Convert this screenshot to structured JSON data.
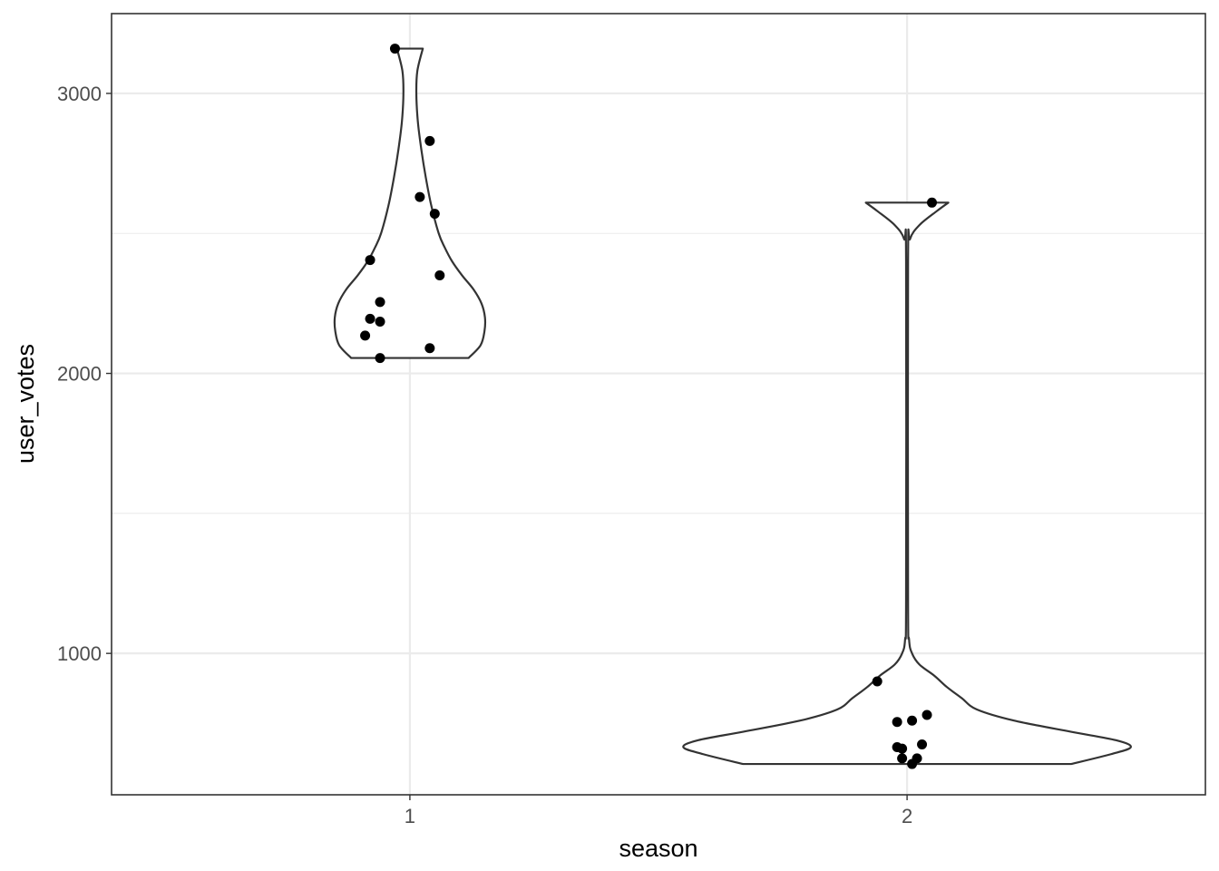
{
  "chart_data": {
    "type": "violin",
    "xlabel": "season",
    "ylabel": "user_votes",
    "categories": [
      "1",
      "2"
    ],
    "yticks": [
      1000,
      2000,
      3000
    ],
    "ylim": [
      495,
      3285
    ],
    "grid": true,
    "legend": "none",
    "colors": {
      "violin_outline": "#333333",
      "point": "#000000",
      "grid": "#ebebeb",
      "panel_border": "#333333"
    },
    "series": [
      {
        "category": "1",
        "points": [
          {
            "x": 0.97,
            "y": 3160
          },
          {
            "x": 1.04,
            "y": 2830
          },
          {
            "x": 1.05,
            "y": 2570
          },
          {
            "x": 1.02,
            "y": 2630
          },
          {
            "x": 1.06,
            "y": 2350
          },
          {
            "x": 0.92,
            "y": 2405
          },
          {
            "x": 0.94,
            "y": 2255
          },
          {
            "x": 0.92,
            "y": 2195
          },
          {
            "x": 0.94,
            "y": 2185
          },
          {
            "x": 0.91,
            "y": 2135
          },
          {
            "x": 1.04,
            "y": 2090
          },
          {
            "x": 0.94,
            "y": 2055
          }
        ],
        "violin_min": 2055,
        "violin_max": 3160,
        "density_profile": [
          {
            "y": 2055,
            "w": 0.118
          },
          {
            "y": 2100,
            "w": 0.142
          },
          {
            "y": 2150,
            "w": 0.15
          },
          {
            "y": 2200,
            "w": 0.151
          },
          {
            "y": 2250,
            "w": 0.144
          },
          {
            "y": 2300,
            "w": 0.128
          },
          {
            "y": 2350,
            "w": 0.105
          },
          {
            "y": 2400,
            "w": 0.085
          },
          {
            "y": 2450,
            "w": 0.07
          },
          {
            "y": 2500,
            "w": 0.058
          },
          {
            "y": 2600,
            "w": 0.043
          },
          {
            "y": 2700,
            "w": 0.032
          },
          {
            "y": 2800,
            "w": 0.023
          },
          {
            "y": 2900,
            "w": 0.016
          },
          {
            "y": 3000,
            "w": 0.013
          },
          {
            "y": 3080,
            "w": 0.015
          },
          {
            "y": 3160,
            "w": 0.026
          }
        ]
      },
      {
        "category": "2",
        "points": [
          {
            "x": 0.94,
            "y": 900
          },
          {
            "x": 1.04,
            "y": 780
          },
          {
            "x": 0.98,
            "y": 755
          },
          {
            "x": 1.01,
            "y": 760
          },
          {
            "x": 0.98,
            "y": 665
          },
          {
            "x": 0.99,
            "y": 660
          },
          {
            "x": 1.03,
            "y": 675
          },
          {
            "x": 0.99,
            "y": 625
          },
          {
            "x": 1.02,
            "y": 625
          },
          {
            "x": 1.01,
            "y": 605
          },
          {
            "x": 1.05,
            "y": 2610
          }
        ],
        "violin_min": 605,
        "violin_max": 2610,
        "density_profile": [
          {
            "y": 605,
            "w": 0.33
          },
          {
            "y": 640,
            "w": 0.41
          },
          {
            "y": 665,
            "w": 0.45
          },
          {
            "y": 690,
            "w": 0.42
          },
          {
            "y": 720,
            "w": 0.33
          },
          {
            "y": 760,
            "w": 0.215
          },
          {
            "y": 800,
            "w": 0.14
          },
          {
            "y": 840,
            "w": 0.11
          },
          {
            "y": 880,
            "w": 0.08
          },
          {
            "y": 920,
            "w": 0.055
          },
          {
            "y": 960,
            "w": 0.025
          },
          {
            "y": 1000,
            "w": 0.01
          },
          {
            "y": 1050,
            "w": 0.004
          },
          {
            "y": 1200,
            "w": 0.002
          },
          {
            "y": 2400,
            "w": 0.002
          },
          {
            "y": 2480,
            "w": 0.006
          },
          {
            "y": 2530,
            "w": 0.025
          },
          {
            "y": 2580,
            "w": 0.06
          },
          {
            "y": 2610,
            "w": 0.083
          }
        ]
      }
    ]
  }
}
